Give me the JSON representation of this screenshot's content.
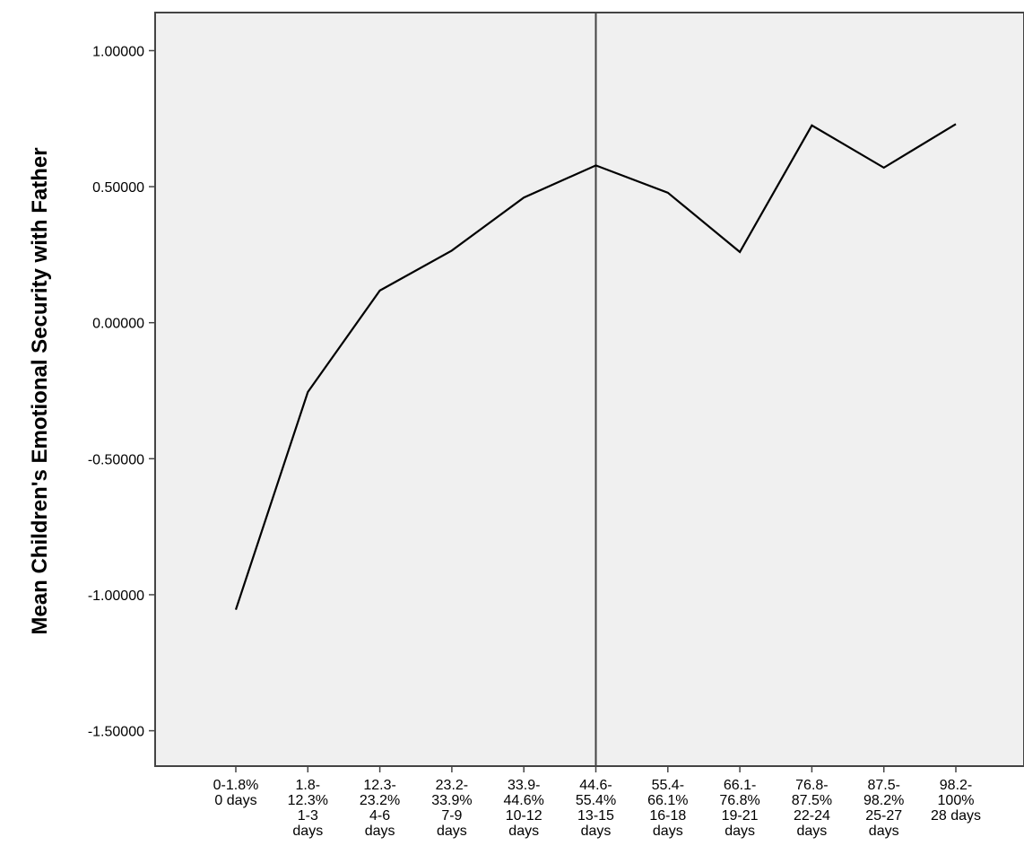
{
  "chart_data": {
    "type": "line",
    "title": "",
    "xlabel": "",
    "ylabel": "Mean Children's Emotional Security with Father",
    "categories": [
      [
        "0-1.8%",
        "0 days"
      ],
      [
        "1.8-",
        "12.3%",
        "1-3",
        "days"
      ],
      [
        "12.3-",
        "23.2%",
        "4-6",
        "days"
      ],
      [
        "23.2-",
        "33.9%",
        "7-9",
        "days"
      ],
      [
        "33.9-",
        "44.6%",
        "10-12",
        "days"
      ],
      [
        "44.6-",
        "55.4%",
        "13-15",
        "days"
      ],
      [
        "55.4-",
        "66.1%",
        "16-18",
        "days"
      ],
      [
        "66.1-",
        "76.8%",
        "19-21",
        "days"
      ],
      [
        "76.8-",
        "87.5%",
        "22-24",
        "days"
      ],
      [
        "87.5-",
        "98.2%",
        "25-27",
        "days"
      ],
      [
        "98.2-",
        "100%",
        "28 days"
      ]
    ],
    "series": [
      {
        "values": [
          -1.055,
          -0.255,
          0.118,
          0.265,
          0.46,
          0.578,
          0.478,
          0.26,
          0.725,
          0.57,
          0.73
        ]
      }
    ],
    "yticks": [
      1.0,
      0.5,
      0.0,
      -0.5,
      -1.0,
      -1.5
    ],
    "ytick_labels": [
      "1.00000",
      "0.50000",
      "0.00000",
      "-0.50000",
      "-1.00000",
      "-1.50000"
    ],
    "ylim": [
      -1.63,
      1.14
    ],
    "reference_line_category_index": 5,
    "grid": false,
    "legend": "none",
    "colors": {
      "plot_background": "#f0f0f0",
      "line": "#000000",
      "frame": "#444444"
    }
  }
}
